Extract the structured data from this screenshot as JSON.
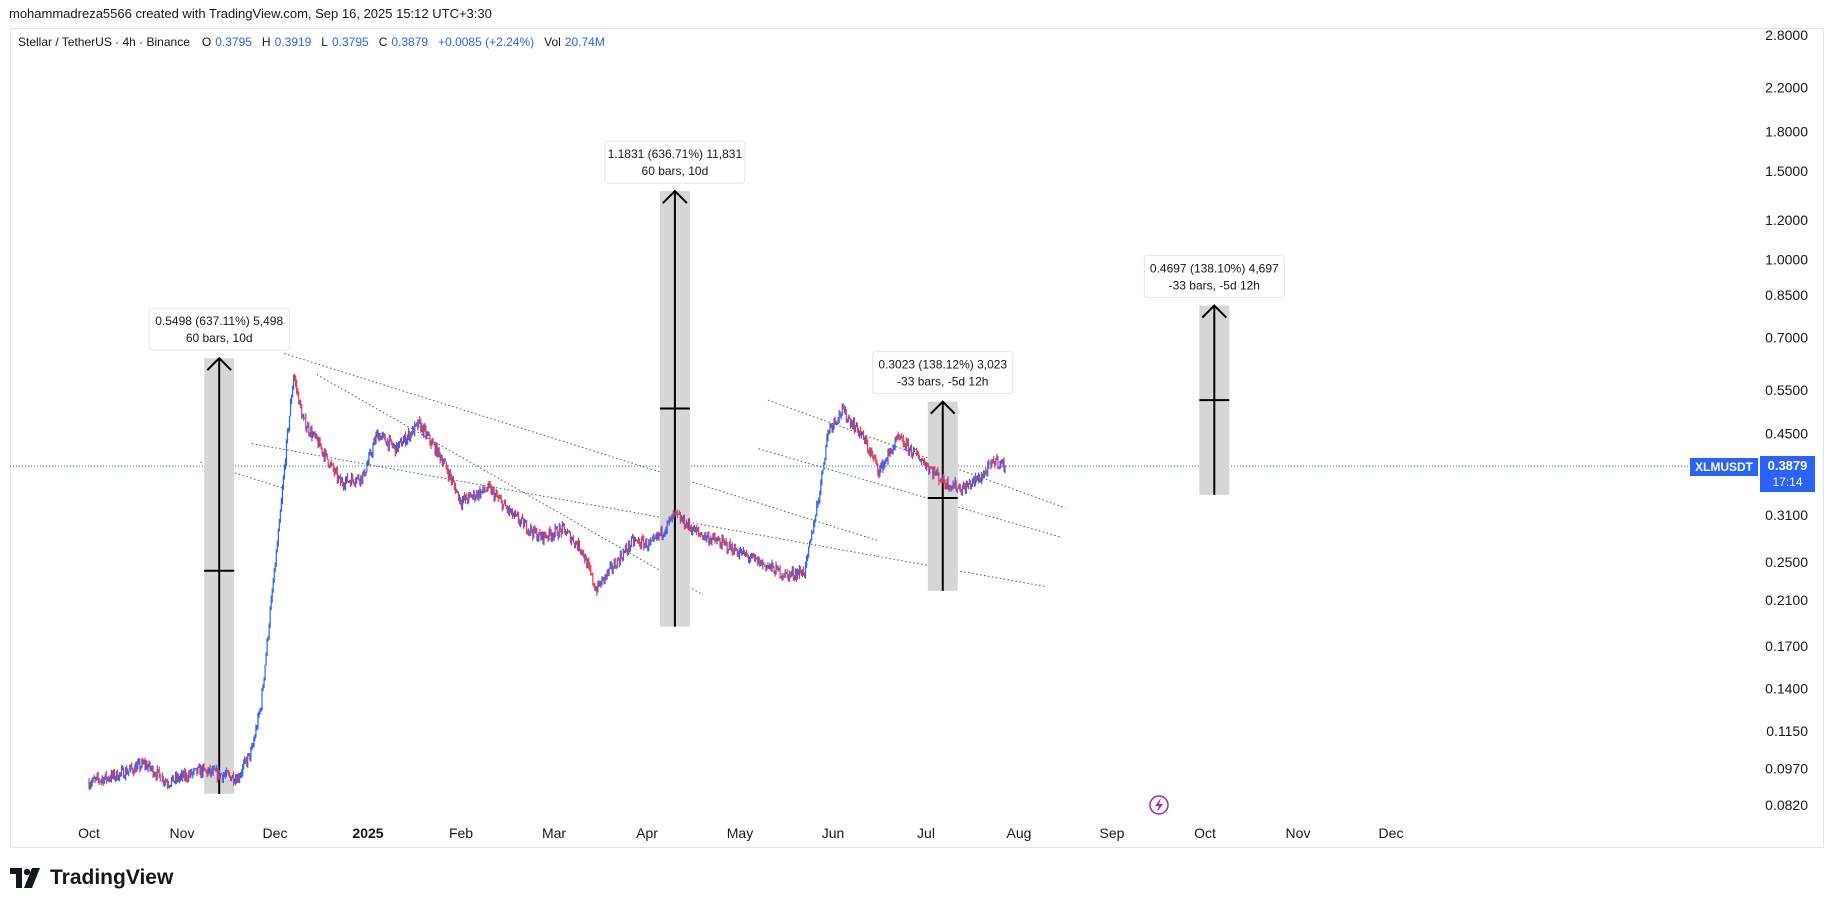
{
  "header": {
    "credit": "mohammadreza5566 created with TradingView.com, Sep 16, 2025 15:12 UTC+3:30"
  },
  "legend": {
    "symbol": "Stellar / TetherUS · 4h · Binance",
    "open_label": "O",
    "open": "0.3795",
    "high_label": "H",
    "high": "0.3919",
    "low_label": "L",
    "low": "0.3795",
    "close_label": "C",
    "close": "0.3879",
    "change": "+0.0085 (+2.24%)",
    "vol_label": "Vol",
    "vol": "20.74M"
  },
  "price_tag": {
    "symbol": "XLMUSDT",
    "price": "0.3879",
    "countdown": "17:14"
  },
  "branding": {
    "name": "TradingView"
  },
  "colors": {
    "up": "#2962ff",
    "down": "#f23645",
    "accent": "#2962ff",
    "channel": "#555555"
  },
  "chart_data": {
    "type": "line",
    "title": "Stellar / TetherUS · 4h · Binance",
    "scale": "log",
    "ylim": [
      0.078,
      2.95
    ],
    "y_ticks": [
      "2.8000",
      "2.2000",
      "1.8000",
      "1.5000",
      "1.2000",
      "1.0000",
      "0.8500",
      "0.7000",
      "0.5500",
      "0.4500",
      "0.3100",
      "0.2500",
      "0.2100",
      "0.1700",
      "0.1400",
      "0.1150",
      "0.0970",
      "0.0820"
    ],
    "x_ticks": [
      {
        "label": "Oct",
        "bold": false
      },
      {
        "label": "Nov",
        "bold": false
      },
      {
        "label": "Dec",
        "bold": false
      },
      {
        "label": "2025",
        "bold": true
      },
      {
        "label": "Feb",
        "bold": false
      },
      {
        "label": "Mar",
        "bold": false
      },
      {
        "label": "Apr",
        "bold": false
      },
      {
        "label": "May",
        "bold": false
      },
      {
        "label": "Jun",
        "bold": false
      },
      {
        "label": "Jul",
        "bold": false
      },
      {
        "label": "Aug",
        "bold": false
      },
      {
        "label": "Sep",
        "bold": false
      },
      {
        "label": "Oct",
        "bold": false
      },
      {
        "label": "Nov",
        "bold": false
      },
      {
        "label": "Dec",
        "bold": false
      }
    ],
    "price_path": [
      {
        "t": 0.0,
        "p": 0.091
      },
      {
        "t": 0.3,
        "p": 0.094
      },
      {
        "t": 0.6,
        "p": 0.099
      },
      {
        "t": 0.85,
        "p": 0.091
      },
      {
        "t": 1.2,
        "p": 0.096
      },
      {
        "t": 1.45,
        "p": 0.094
      },
      {
        "t": 1.6,
        "p": 0.093
      },
      {
        "t": 1.75,
        "p": 0.105
      },
      {
        "t": 1.85,
        "p": 0.13
      },
      {
        "t": 1.95,
        "p": 0.2
      },
      {
        "t": 2.05,
        "p": 0.3
      },
      {
        "t": 2.12,
        "p": 0.42
      },
      {
        "t": 2.2,
        "p": 0.59
      },
      {
        "t": 2.3,
        "p": 0.48
      },
      {
        "t": 2.5,
        "p": 0.42
      },
      {
        "t": 2.7,
        "p": 0.36
      },
      {
        "t": 2.95,
        "p": 0.37
      },
      {
        "t": 3.1,
        "p": 0.45
      },
      {
        "t": 3.3,
        "p": 0.42
      },
      {
        "t": 3.55,
        "p": 0.47
      },
      {
        "t": 3.8,
        "p": 0.4
      },
      {
        "t": 4.0,
        "p": 0.33
      },
      {
        "t": 4.3,
        "p": 0.35
      },
      {
        "t": 4.55,
        "p": 0.31
      },
      {
        "t": 4.85,
        "p": 0.28
      },
      {
        "t": 5.1,
        "p": 0.29
      },
      {
        "t": 5.3,
        "p": 0.265
      },
      {
        "t": 5.45,
        "p": 0.22
      },
      {
        "t": 5.6,
        "p": 0.24
      },
      {
        "t": 5.85,
        "p": 0.275
      },
      {
        "t": 6.05,
        "p": 0.27
      },
      {
        "t": 6.3,
        "p": 0.31
      },
      {
        "t": 6.55,
        "p": 0.285
      },
      {
        "t": 6.85,
        "p": 0.27
      },
      {
        "t": 7.1,
        "p": 0.255
      },
      {
        "t": 7.3,
        "p": 0.245
      },
      {
        "t": 7.5,
        "p": 0.235
      },
      {
        "t": 7.7,
        "p": 0.24
      },
      {
        "t": 7.85,
        "p": 0.34
      },
      {
        "t": 7.95,
        "p": 0.46
      },
      {
        "t": 8.1,
        "p": 0.5
      },
      {
        "t": 8.3,
        "p": 0.45
      },
      {
        "t": 8.5,
        "p": 0.38
      },
      {
        "t": 8.7,
        "p": 0.44
      },
      {
        "t": 8.95,
        "p": 0.4
      },
      {
        "t": 9.2,
        "p": 0.36
      },
      {
        "t": 9.4,
        "p": 0.35
      },
      {
        "t": 9.6,
        "p": 0.37
      },
      {
        "t": 9.75,
        "p": 0.399
      },
      {
        "t": 9.85,
        "p": 0.3879
      }
    ],
    "channels": [
      {
        "name": "channel-1-upper",
        "t0": 1.75,
        "p0": 0.43,
        "t1": 10.3,
        "p1": 0.223
      },
      {
        "name": "channel-1-mid",
        "t0": 2.1,
        "p0": 0.65,
        "t1": 8.5,
        "p1": 0.275
      },
      {
        "name": "channel-1-lower",
        "t0": 2.45,
        "p0": 0.59,
        "t1": 6.6,
        "p1": 0.215
      },
      {
        "name": "channel-2-upper",
        "t0": 7.3,
        "p0": 0.525,
        "t1": 10.5,
        "p1": 0.32
      },
      {
        "name": "channel-2-lower",
        "t0": 7.2,
        "p0": 0.42,
        "t1": 10.45,
        "p1": 0.28
      },
      {
        "name": "channel-ref-line",
        "t0": 1.2,
        "p0": 0.395,
        "t1": 2.1,
        "p1": 0.35
      }
    ],
    "last_price": 0.3879,
    "measures": [
      {
        "t": 1.4,
        "from": 0.0863,
        "to": 0.6361,
        "mid": 0.24,
        "line1": "0.5498 (637.11%) 5,498",
        "line2": "60 bars, 10d"
      },
      {
        "t": 6.3,
        "from": 0.1858,
        "to": 1.3689,
        "mid": 0.505,
        "line1": "1.1831 (636.71%) 11,831",
        "line2": "60 bars, 10d"
      },
      {
        "t": 9.18,
        "from": 0.2189,
        "to": 0.5212,
        "mid": 0.335,
        "line1": "0.3023 (138.12%) 3,023",
        "line2": "-33 bars, -5d 12h"
      },
      {
        "t": 12.1,
        "from": 0.34,
        "to": 0.8097,
        "mid": 0.525,
        "line1": "0.4697 (138.10%) 4,697",
        "line2": "-33 bars, -5d 12h"
      }
    ]
  }
}
